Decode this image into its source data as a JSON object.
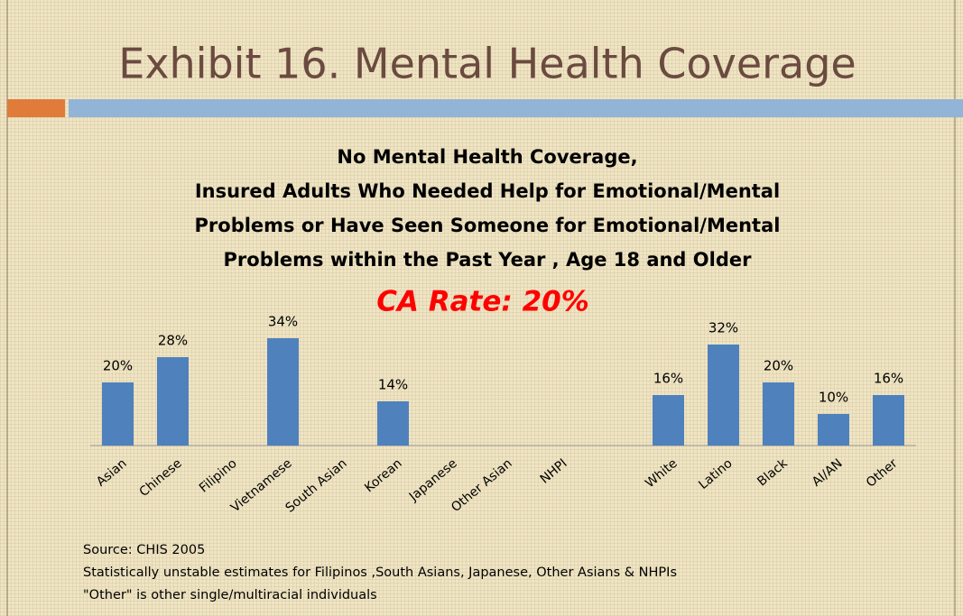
{
  "slide_title": "Exhibit 16. Mental Health Coverage",
  "chart_data": {
    "type": "bar",
    "title_lines": [
      "No Mental Health Coverage,",
      "Insured Adults Who Needed Help for Emotional/Mental",
      "Problems or Have Seen Someone for Emotional/Mental",
      "Problems within the Past Year , Age 18 and Older"
    ],
    "subtitle": "CA Rate:  20%",
    "categories": [
      "Asian",
      "Chinese",
      "Filipino",
      "Vietnamese",
      "South Asian",
      "Korean",
      "Japanese",
      "Other Asian",
      "NHPI",
      null,
      "White",
      "Latino",
      "Black",
      "AI/AN",
      "Other"
    ],
    "values": [
      20,
      28,
      null,
      34,
      null,
      14,
      null,
      null,
      null,
      null,
      16,
      32,
      20,
      10,
      16
    ],
    "value_labels": [
      "20%",
      "28%",
      null,
      "34%",
      null,
      "14%",
      null,
      null,
      null,
      null,
      "16%",
      "32%",
      "20%",
      "10%",
      "16%"
    ],
    "color": "#4f81bd"
  },
  "notes": [
    "Source:  CHIS 2005",
    "Statistically unstable estimates for  Filipinos ,South Asians, Japanese, Other Asians & NHPIs",
    "\"Other\" is other single/multiracial individuals"
  ]
}
